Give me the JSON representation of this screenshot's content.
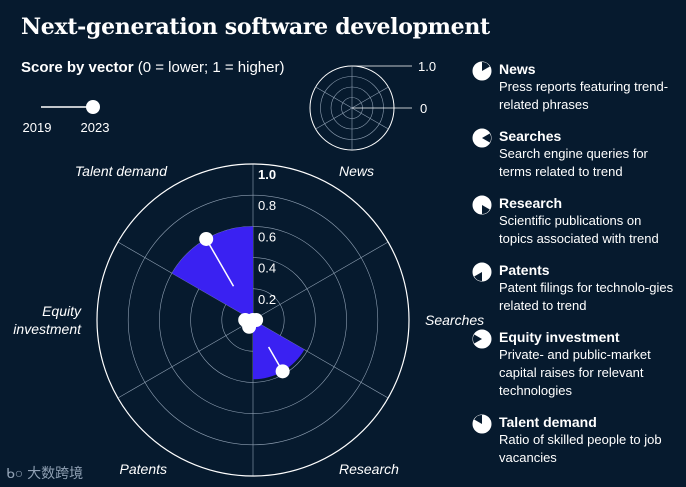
{
  "header": {
    "title": "Next-generation software development",
    "subtitle_bold": "Score by vector",
    "subtitle_rest": " (0 = lower; 1 = higher)"
  },
  "timeline": {
    "start_label": "2019",
    "end_label": "2023"
  },
  "scale_key": {
    "max_label": "1.0",
    "min_label": "0"
  },
  "colors": {
    "background": "#061a2e",
    "accent": "#3a21f2",
    "line": "#ffffff"
  },
  "chart_data": {
    "type": "radial-bar",
    "title": "Score by vector",
    "rlim": [
      0,
      1
    ],
    "r_ticks": [
      "1.0",
      "0.8",
      "0.6",
      "0.4",
      "0.2"
    ],
    "vectors": [
      {
        "name": "News",
        "label": "News",
        "angle_center": 30,
        "v2019": 0.02,
        "v2023": 0.0
      },
      {
        "name": "Searches",
        "label": "Searches",
        "angle_center": 90,
        "v2019": 0.03,
        "v2023": 0.02
      },
      {
        "name": "Research",
        "label": "Research",
        "angle_center": 150,
        "v2019": 0.2,
        "v2023": 0.38
      },
      {
        "name": "Patents",
        "label": "Patents",
        "angle_center": 210,
        "v2019": 0.05,
        "v2023": 0.05
      },
      {
        "name": "Equity investment",
        "label": "Equity\ninvestment",
        "angle_center": 270,
        "v2019": 0.07,
        "v2023": 0.05
      },
      {
        "name": "Talent demand",
        "label": "Talent demand",
        "angle_center": 330,
        "v2019": 0.25,
        "v2023": 0.6
      }
    ]
  },
  "legend": {
    "items": [
      {
        "name": "News",
        "desc": "Press reports featuring trend-related phrases"
      },
      {
        "name": "Searches",
        "desc": "Search engine queries for terms related to trend"
      },
      {
        "name": "Research",
        "desc": "Scientific publications on topics associated with trend"
      },
      {
        "name": "Patents",
        "desc": "Patent filings for technolo-gies related to trend"
      },
      {
        "name": "Equity investment",
        "desc": "Private- and public-market capital raises for relevant technologies"
      },
      {
        "name": "Talent demand",
        "desc": "Ratio of skilled people to job vacancies"
      }
    ]
  },
  "watermark": {
    "text": "大数跨境"
  }
}
